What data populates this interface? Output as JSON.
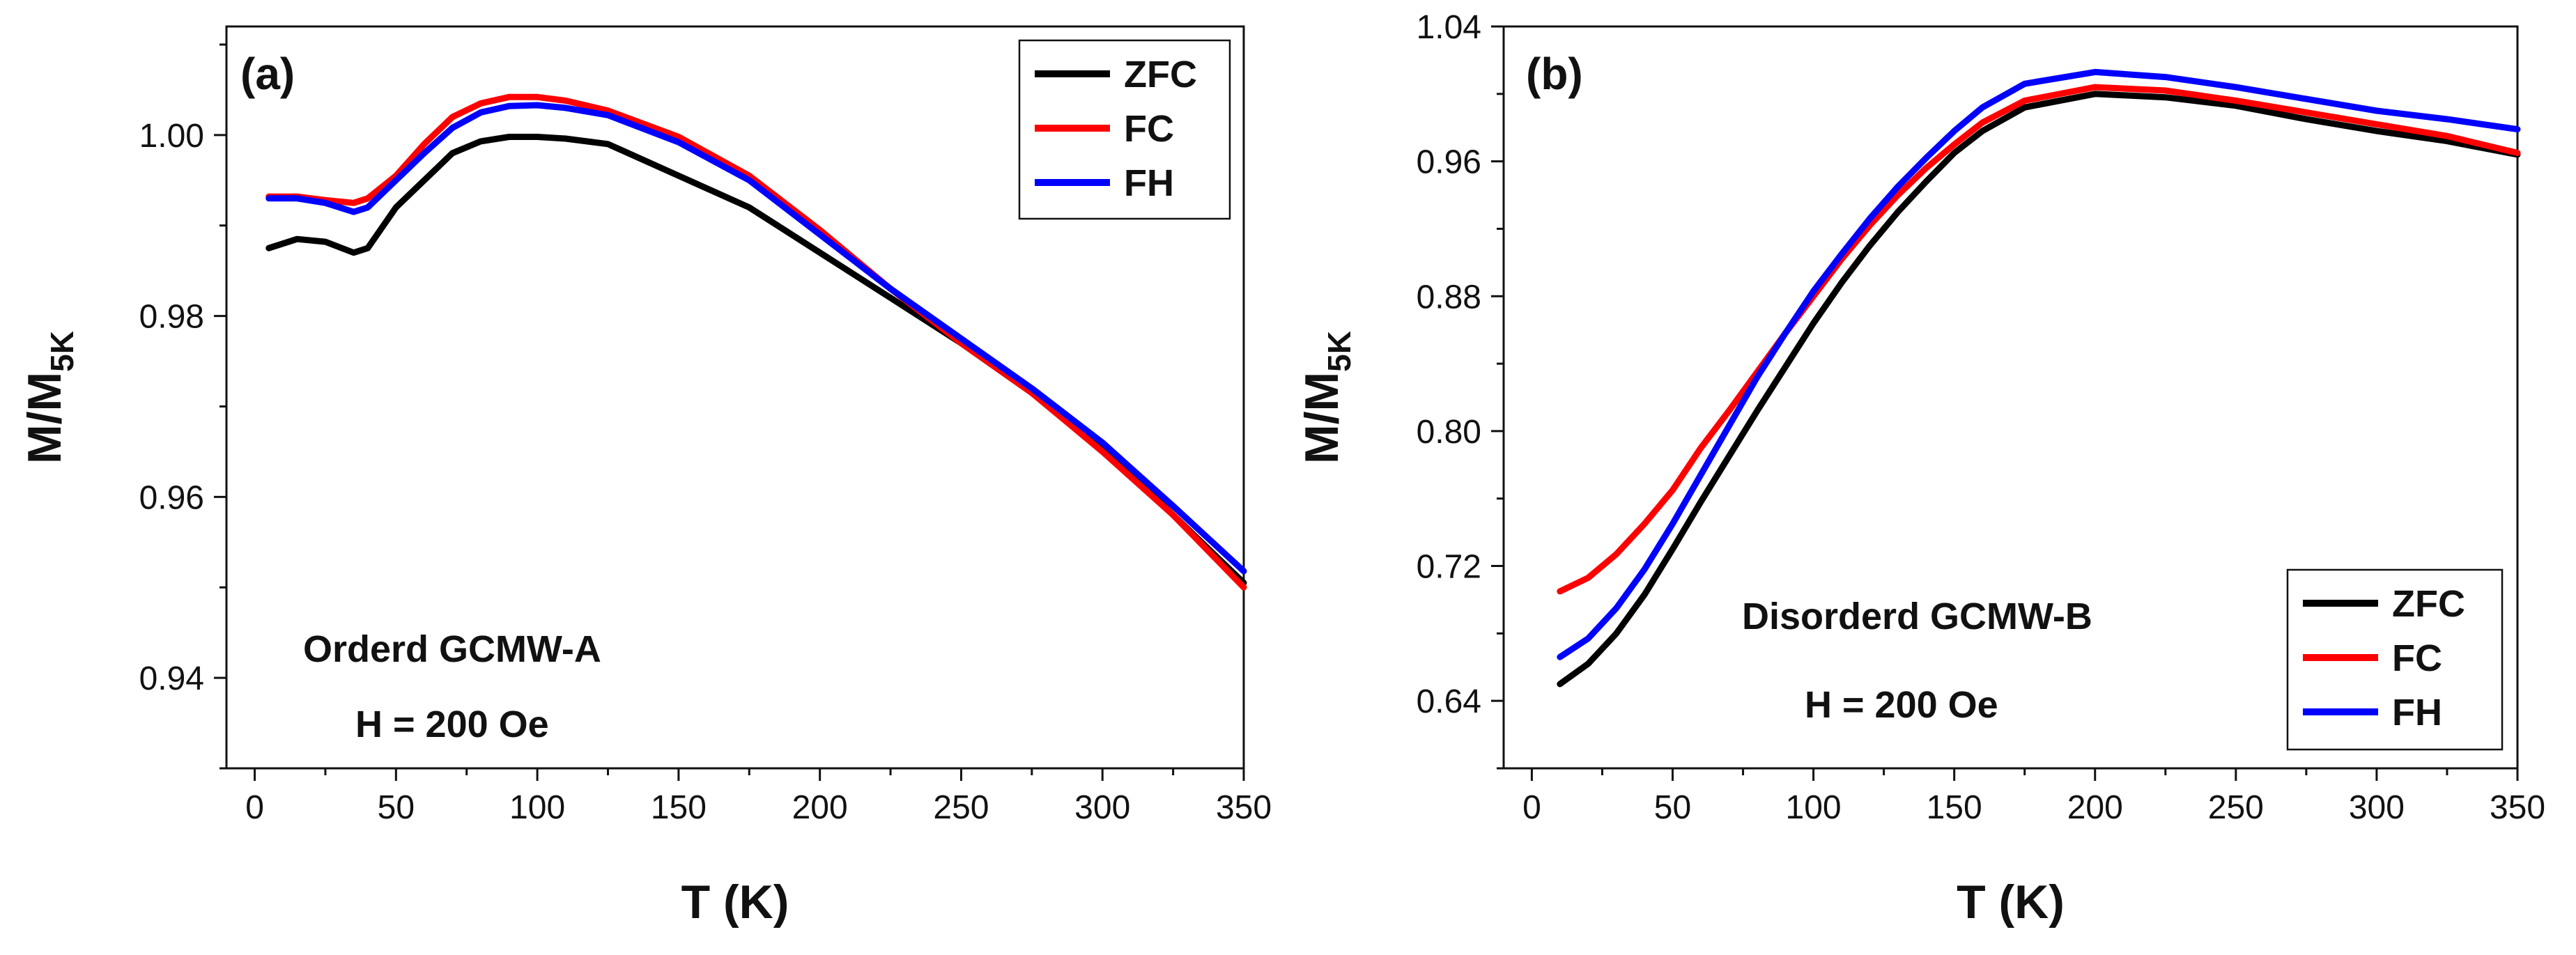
{
  "chart_data": [
    {
      "type": "line",
      "panel_label": "(a)",
      "xlabel": "T (K)",
      "ylabel": "M/M",
      "ylabel_subscript": "5K",
      "xlim": [
        -10,
        350
      ],
      "ylim": [
        0.93,
        1.012
      ],
      "xticks": [
        0,
        50,
        100,
        150,
        200,
        250,
        300,
        350
      ],
      "xtick_labels": [
        "0",
        "50",
        "100",
        "150",
        "200",
        "250",
        "300",
        "350"
      ],
      "yticks": [
        0.94,
        0.96,
        0.98,
        1.0
      ],
      "ytick_labels": [
        "0.94",
        "0.96",
        "0.98",
        "1.00"
      ],
      "annotations": [
        "Orderd GCMW-A",
        "H = 200 Oe"
      ],
      "legend_position": "top-right",
      "series": [
        {
          "name": "ZFC",
          "color": "#000000",
          "x": [
            5,
            15,
            25,
            35,
            40,
            50,
            60,
            70,
            80,
            90,
            100,
            110,
            125,
            150,
            175,
            200,
            225,
            250,
            275,
            300,
            325,
            350
          ],
          "y": [
            0.9875,
            0.9885,
            0.9882,
            0.987,
            0.9875,
            0.992,
            0.995,
            0.998,
            0.9993,
            0.9998,
            0.9998,
            0.9996,
            0.999,
            0.9955,
            0.992,
            0.987,
            0.982,
            0.977,
            0.9715,
            0.9655,
            0.958,
            0.9505
          ]
        },
        {
          "name": "FC",
          "color": "#ff0000",
          "x": [
            5,
            15,
            25,
            35,
            40,
            50,
            60,
            70,
            80,
            90,
            100,
            110,
            125,
            150,
            175,
            200,
            225,
            250,
            275,
            300,
            325,
            350
          ],
          "y": [
            0.9932,
            0.9932,
            0.9928,
            0.9925,
            0.993,
            0.9955,
            0.999,
            1.002,
            1.0035,
            1.0042,
            1.0042,
            1.0038,
            1.0027,
            0.9998,
            0.9955,
            0.9895,
            0.983,
            0.977,
            0.9715,
            0.965,
            0.958,
            0.95
          ]
        },
        {
          "name": "FH",
          "color": "#0000ff",
          "x": [
            5,
            15,
            25,
            35,
            40,
            50,
            60,
            70,
            80,
            90,
            100,
            110,
            125,
            150,
            175,
            200,
            225,
            250,
            275,
            300,
            325,
            350
          ],
          "y": [
            0.993,
            0.993,
            0.9925,
            0.9915,
            0.992,
            0.995,
            0.998,
            1.0008,
            1.0025,
            1.0032,
            1.0033,
            1.003,
            1.0022,
            0.9992,
            0.995,
            0.989,
            0.983,
            0.9775,
            0.972,
            0.966,
            0.959,
            0.9518
          ]
        }
      ]
    },
    {
      "type": "line",
      "panel_label": "(b)",
      "xlabel": "T (K)",
      "ylabel": "M/M",
      "ylabel_subscript": "5K",
      "xlim": [
        -10,
        350
      ],
      "ylim": [
        0.6,
        1.04
      ],
      "xticks": [
        0,
        50,
        100,
        150,
        200,
        250,
        300,
        350
      ],
      "xtick_labels": [
        "0",
        "50",
        "100",
        "150",
        "200",
        "250",
        "300",
        "350"
      ],
      "yticks": [
        0.64,
        0.72,
        0.8,
        0.88,
        0.96,
        1.04
      ],
      "ytick_labels": [
        "0.64",
        "0.72",
        "0.80",
        "0.88",
        "0.96",
        "1.04"
      ],
      "annotations": [
        "Disorderd GCMW-B",
        "H = 200 Oe"
      ],
      "legend_position": "bottom-right",
      "series": [
        {
          "name": "ZFC",
          "color": "#000000",
          "x": [
            10,
            20,
            30,
            40,
            50,
            60,
            70,
            80,
            90,
            100,
            110,
            120,
            130,
            140,
            150,
            160,
            175,
            200,
            225,
            250,
            275,
            300,
            325,
            350
          ],
          "y": [
            0.65,
            0.662,
            0.68,
            0.703,
            0.73,
            0.758,
            0.785,
            0.812,
            0.838,
            0.864,
            0.888,
            0.91,
            0.93,
            0.948,
            0.965,
            0.978,
            0.992,
            1.0,
            0.998,
            0.993,
            0.985,
            0.978,
            0.972,
            0.964
          ]
        },
        {
          "name": "FC",
          "color": "#ff0000",
          "x": [
            10,
            20,
            30,
            40,
            50,
            60,
            70,
            80,
            90,
            100,
            110,
            120,
            130,
            140,
            150,
            160,
            175,
            200,
            225,
            250,
            275,
            300,
            325,
            350
          ],
          "y": [
            0.705,
            0.713,
            0.727,
            0.745,
            0.765,
            0.79,
            0.812,
            0.835,
            0.858,
            0.88,
            0.902,
            0.922,
            0.94,
            0.956,
            0.97,
            0.983,
            0.996,
            1.004,
            1.002,
            0.996,
            0.989,
            0.982,
            0.975,
            0.965
          ]
        },
        {
          "name": "FH",
          "color": "#0000ff",
          "x": [
            10,
            20,
            30,
            40,
            50,
            60,
            70,
            80,
            90,
            100,
            110,
            120,
            130,
            140,
            150,
            160,
            175,
            200,
            225,
            250,
            275,
            300,
            325,
            350
          ],
          "y": [
            0.666,
            0.677,
            0.695,
            0.718,
            0.745,
            0.774,
            0.803,
            0.832,
            0.858,
            0.883,
            0.905,
            0.926,
            0.945,
            0.962,
            0.978,
            0.992,
            1.006,
            1.013,
            1.01,
            1.004,
            0.997,
            0.99,
            0.985,
            0.979
          ]
        }
      ]
    }
  ]
}
